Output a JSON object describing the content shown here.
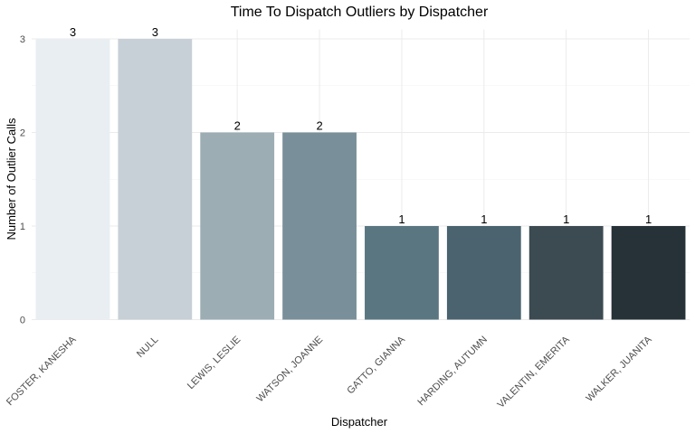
{
  "chart_data": {
    "type": "bar",
    "title": "Time To Dispatch Outliers by Dispatcher",
    "xlabel": "Dispatcher",
    "ylabel": "Number of Outlier Calls",
    "categories": [
      "FOSTER, KANESHA",
      "NULL",
      "LEWIS, LESLIE",
      "WATSON, JOANNE",
      "GATTO, GIANNA",
      "HARDING, AUTUMN",
      "VALENTIN, EMERITA",
      "WALKER, JUANITA"
    ],
    "values": [
      3,
      3,
      2,
      2,
      1,
      1,
      1,
      1
    ],
    "colors": [
      "#e9eef2",
      "#c7d0d6",
      "#9cadb4",
      "#798f99",
      "#5a7681",
      "#4a636e",
      "#3c4a51",
      "#263238"
    ],
    "yticks": [
      0,
      1,
      2,
      3
    ],
    "ylim": [
      0,
      3.1
    ],
    "grid": true,
    "legend": "none"
  }
}
